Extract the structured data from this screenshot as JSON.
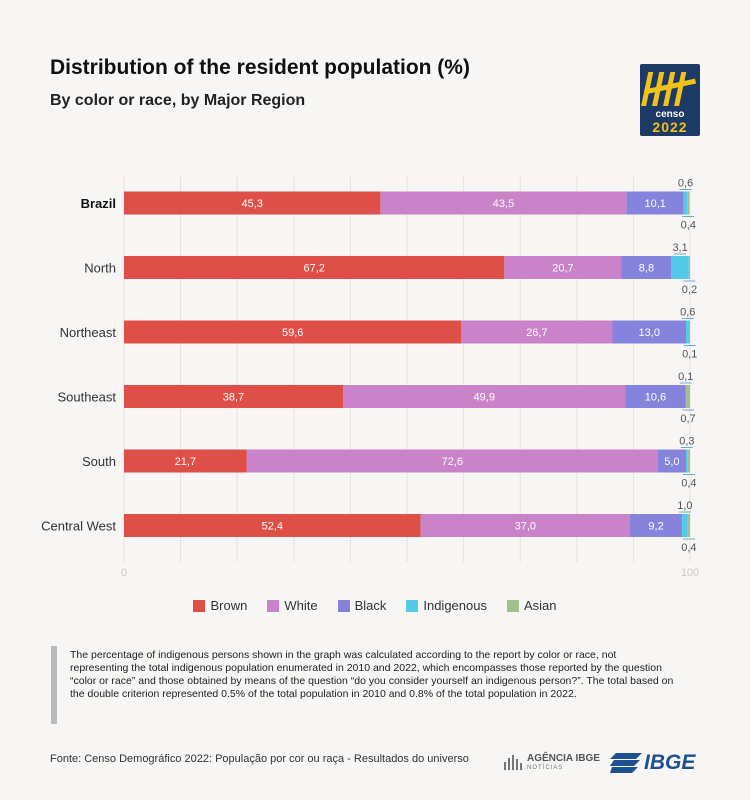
{
  "header": {
    "title": "Distribution of the resident population (%)",
    "subtitle": "By color or race, by Major Region"
  },
  "logo": {
    "word1": "censo",
    "word2": "2022"
  },
  "colors": {
    "Brown": "#de4f47",
    "White": "#ca82c8",
    "Black": "#8583dc",
    "Indigenous": "#52cae8",
    "Asian": "#a2c08f"
  },
  "chart_data": {
    "type": "bar",
    "orientation": "horizontal",
    "stacked": true,
    "categories": [
      "Brazil",
      "North",
      "Northeast",
      "Southeast",
      "South",
      "Central West"
    ],
    "series": [
      {
        "name": "Brown",
        "values": [
          45.3,
          67.2,
          59.6,
          38.7,
          21.7,
          52.4
        ]
      },
      {
        "name": "White",
        "values": [
          43.5,
          20.7,
          26.7,
          49.9,
          72.6,
          37.0
        ]
      },
      {
        "name": "Black",
        "values": [
          10.1,
          8.8,
          13.0,
          10.6,
          5.0,
          9.2
        ]
      },
      {
        "name": "Indigenous",
        "values": [
          0.6,
          3.1,
          0.6,
          0.1,
          0.3,
          1.0
        ]
      },
      {
        "name": "Asian",
        "values": [
          0.4,
          0.2,
          0.1,
          0.7,
          0.4,
          0.4
        ]
      }
    ],
    "value_labels": [
      [
        "45,3",
        "43,5",
        "10,1",
        "0,6",
        "0,4"
      ],
      [
        "67,2",
        "20,7",
        "8,8",
        "3,1",
        "0,2"
      ],
      [
        "59,6",
        "26,7",
        "13,0",
        "0,6",
        "0,1"
      ],
      [
        "38,7",
        "49,9",
        "10,6",
        "0,1",
        "0,7"
      ],
      [
        "21,7",
        "72,6",
        "5,0",
        "0,3",
        "0,4"
      ],
      [
        "52,4",
        "37,0",
        "9,2",
        "1,0",
        "0,4"
      ]
    ],
    "xlim": [
      0,
      100
    ],
    "x_tick_labels": [
      "0",
      "100"
    ],
    "grid": true,
    "legend_position": "bottom"
  },
  "legend": [
    "Brown",
    "White",
    "Black",
    "Indigenous",
    "Asian"
  ],
  "note": "The percentage of indigenous persons shown in the graph was calculated according to the report by color or race, not representing the total indigenous population enumerated in 2010 and 2022, which encompasses those reported by the question “color or race” and those obtained by means of the question “do you consider yourself an indigenous person?”. The total based on the double criterion represented 0.5% of the total population in 2010 and 0.8% of the total population in 2022.",
  "source": "Fonte: Censo Demográfico 2022: População por cor ou raça - Resultados do universo",
  "footer": {
    "agencia": "AGÊNCIA IBGE",
    "agencia_sub": "NOTÍCIAS",
    "ibge": "IBGE"
  }
}
